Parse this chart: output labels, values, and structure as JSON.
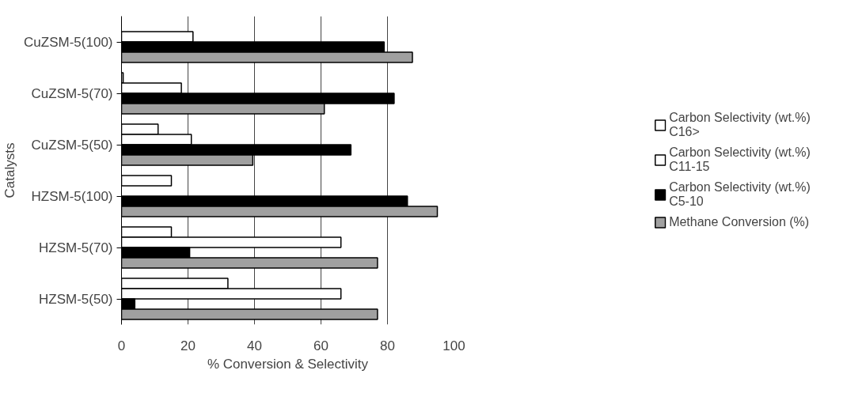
{
  "chart_data": {
    "type": "bar",
    "orientation": "horizontal",
    "categories": [
      "CuZSM-5(100)",
      "CuZSM-5(70)",
      "CuZSM-5(50)",
      "HZSM-5(100)",
      "HZSM-5(70)",
      "HZSM-5(50)"
    ],
    "series": [
      {
        "name": "Carbon Selectivity (wt.%)\nC16>",
        "color": "#ffffff",
        "values": [
          null,
          0.5,
          11,
          15,
          15,
          32
        ]
      },
      {
        "name": "Carbon Selectivity (wt.%)\nC11-15",
        "color": "#ffffff",
        "values": [
          21.5,
          18,
          21,
          null,
          66,
          66
        ]
      },
      {
        "name": "Carbon Selectivity (wt.%)\nC5-10",
        "color": "#000000",
        "values": [
          79,
          82,
          69,
          86,
          20.5,
          4
        ]
      },
      {
        "name": "Methane Conversion (%)",
        "color": "#a0a0a0",
        "values": [
          87.5,
          61,
          39.5,
          95,
          77,
          77
        ]
      }
    ],
    "xlim": [
      0,
      100
    ],
    "xticks": [
      0,
      20,
      40,
      60,
      80,
      100
    ],
    "xlabel": "% Conversion & Selectivity",
    "ylabel": "Catalysts",
    "grid": "x",
    "legend": "right"
  }
}
